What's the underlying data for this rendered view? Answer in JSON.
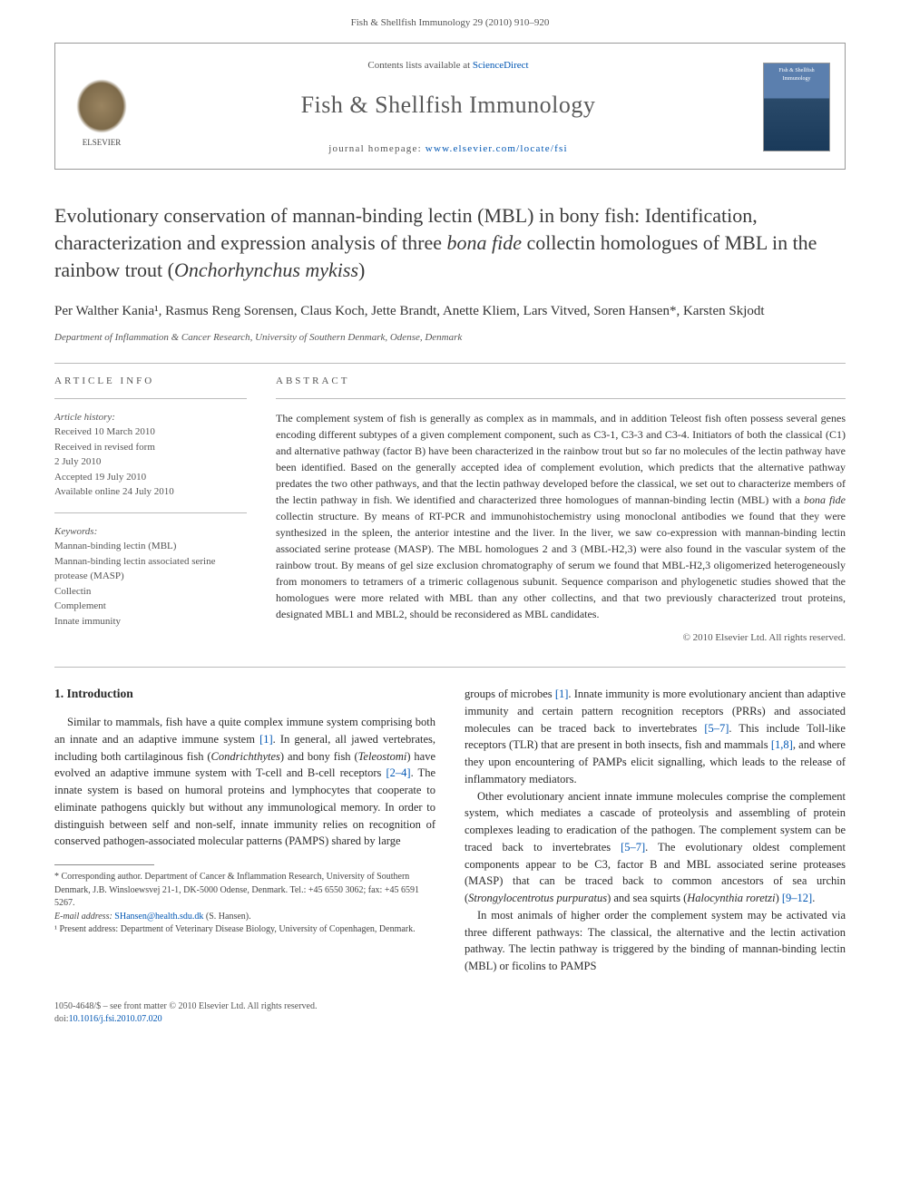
{
  "header": {
    "journal_ref": "Fish & Shellfish Immunology 29 (2010) 910–920",
    "contents_line_prefix": "Contents lists available at ",
    "contents_link": "ScienceDirect",
    "journal_name": "Fish & Shellfish Immunology",
    "homepage_prefix": "journal homepage: ",
    "homepage_url": "www.elsevier.com/locate/fsi",
    "publisher_logo_label": "ELSEVIER",
    "cover_label": "Fish & Shellfish\nImmunology"
  },
  "article": {
    "title_html": "Evolutionary conservation of mannan-binding lectin (MBL) in bony fish: Identification, characterization and expression analysis of three <em>bona fide</em> collectin homologues of MBL in the rainbow trout (<em>Onchorhynchus mykiss</em>)",
    "authors": "Per Walther Kania¹, Rasmus Reng Sorensen, Claus Koch, Jette Brandt, Anette Kliem, Lars Vitved, Soren Hansen*, Karsten Skjodt",
    "affiliation": "Department of Inflammation & Cancer Research, University of Southern Denmark, Odense, Denmark"
  },
  "info": {
    "label": "ARTICLE INFO",
    "history_label": "Article history:",
    "history": [
      "Received 10 March 2010",
      "Received in revised form",
      "2 July 2010",
      "Accepted 19 July 2010",
      "Available online 24 July 2010"
    ],
    "keywords_label": "Keywords:",
    "keywords": [
      "Mannan-binding lectin (MBL)",
      "Mannan-binding lectin associated serine protease (MASP)",
      "Collectin",
      "Complement",
      "Innate immunity"
    ]
  },
  "abstract": {
    "label": "ABSTRACT",
    "text_html": "The complement system of fish is generally as complex as in mammals, and in addition Teleost fish often possess several genes encoding different subtypes of a given complement component, such as C3-1, C3-3 and C3-4. Initiators of both the classical (C1) and alternative pathway (factor B) have been characterized in the rainbow trout but so far no molecules of the lectin pathway have been identified. Based on the generally accepted idea of complement evolution, which predicts that the alternative pathway predates the two other pathways, and that the lectin pathway developed before the classical, we set out to characterize members of the lectin pathway in fish. We identified and characterized three homologues of mannan-binding lectin (MBL) with a <em>bona fide</em> collectin structure. By means of RT-PCR and immunohistochemistry using monoclonal antibodies we found that they were synthesized in the spleen, the anterior intestine and the liver. In the liver, we saw co-expression with mannan-binding lectin associated serine protease (MASP). The MBL homologues 2 and 3 (MBL-H2,3) were also found in the vascular system of the rainbow trout. By means of gel size exclusion chromatography of serum we found that MBL-H2,3 oligomerized heterogeneously from monomers to tetramers of a trimeric collagenous subunit. Sequence comparison and phylogenetic studies showed that the homologues were more related with MBL than any other collectins, and that two previously characterized trout proteins, designated MBL1 and MBL2, should be reconsidered as MBL candidates.",
    "copyright": "© 2010 Elsevier Ltd. All rights reserved."
  },
  "body": {
    "section_number": "1.",
    "section_title": "Introduction",
    "col1_p1_html": "Similar to mammals, fish have a quite complex immune system comprising both an innate and an adaptive immune system <span class='cite'>[1]</span>. In general, all jawed vertebrates, including both cartilaginous fish (<em>Condrichthytes</em>) and bony fish (<em>Teleostomi</em>) have evolved an adaptive immune system with T-cell and B-cell receptors <span class='cite'>[2–4]</span>. The innate system is based on humoral proteins and lymphocytes that cooperate to eliminate pathogens quickly but without any immunological memory. In order to distinguish between self and non-self, innate immunity relies on recognition of conserved pathogen-associated molecular patterns (PAMPS) shared by large",
    "col2_p1_html": "groups of microbes <span class='cite'>[1]</span>. Innate immunity is more evolutionary ancient than adaptive immunity and certain pattern recognition receptors (PRRs) and associated molecules can be traced back to invertebrates <span class='cite'>[5–7]</span>. This include Toll-like receptors (TLR) that are present in both insects, fish and mammals <span class='cite'>[1,8]</span>, and where they upon encountering of PAMPs elicit signalling, which leads to the release of inflammatory mediators.",
    "col2_p2_html": "Other evolutionary ancient innate immune molecules comprise the complement system, which mediates a cascade of proteolysis and assembling of protein complexes leading to eradication of the pathogen. The complement system can be traced back to invertebrates <span class='cite'>[5–7]</span>. The evolutionary oldest complement components appear to be C3, factor B and MBL associated serine proteases (MASP) that can be traced back to common ancestors of sea urchin (<em>Strongylocentrotus purpuratus</em>) and sea squirts (<em>Halocynthia roretzi</em>) <span class='cite'>[9–12]</span>.",
    "col2_p3_html": "In most animals of higher order the complement system may be activated via three different pathways: The classical, the alternative and the lectin activation pathway. The lectin pathway is triggered by the binding of mannan-binding lectin (MBL) or ficolins to PAMPS"
  },
  "footnotes": {
    "corr": "* Corresponding author. Department of Cancer & Inflammation Research, University of Southern Denmark, J.B. Winsloewsvej 21-1, DK-5000 Odense, Denmark. Tel.: +45 6550 3062; fax: +45 6591 5267.",
    "email_label": "E-mail address:",
    "email": "SHansen@health.sdu.dk",
    "email_suffix": "(S. Hansen).",
    "present": "¹ Present address: Department of Veterinary Disease Biology, University of Copenhagen, Denmark."
  },
  "footer": {
    "issn_line": "1050-4648/$ – see front matter © 2010 Elsevier Ltd. All rights reserved.",
    "doi_prefix": "doi:",
    "doi": "10.1016/j.fsi.2010.07.020"
  }
}
